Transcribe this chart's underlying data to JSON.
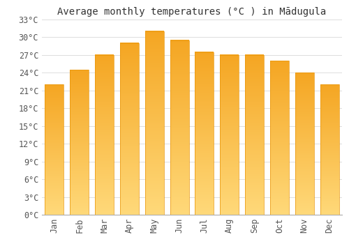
{
  "title": "Average monthly temperatures (°C ) in Mādugula",
  "months": [
    "Jan",
    "Feb",
    "Mar",
    "Apr",
    "May",
    "Jun",
    "Jul",
    "Aug",
    "Sep",
    "Oct",
    "Nov",
    "Dec"
  ],
  "values": [
    22,
    24.5,
    27,
    29,
    31,
    29.5,
    27.5,
    27,
    27,
    26,
    24,
    22
  ],
  "bar_color_top": "#F5A623",
  "bar_color_bottom": "#FFD97A",
  "bar_edge_color": "#E8950A",
  "ylim": [
    0,
    33
  ],
  "ytick_step": 3,
  "background_color": "#FFFFFF",
  "plot_bg_color": "#FFFFFF",
  "grid_color": "#DDDDDD",
  "title_fontsize": 10,
  "tick_fontsize": 8.5,
  "font_family": "monospace"
}
